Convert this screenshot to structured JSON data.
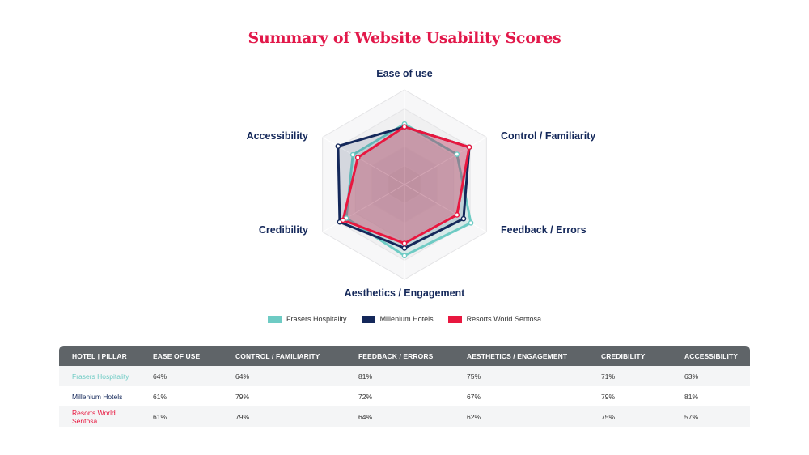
{
  "colors": {
    "title": "#e2184a",
    "axis_label": "#14285a",
    "frasers": "#6ecbc4",
    "millenium": "#14285a",
    "resorts": "#e8173f"
  },
  "chart_data": {
    "type": "radar",
    "title": "Summary of Website Usability Scores",
    "axes": [
      "Ease of use",
      "Control / Familiarity",
      "Feedback / Errors",
      "Aesthetics / Engagement",
      "Credibility",
      "Accessibility"
    ],
    "range": [
      0,
      100
    ],
    "series": [
      {
        "name": "Frasers Hospitality",
        "values": [
          64,
          64,
          81,
          75,
          71,
          63
        ]
      },
      {
        "name": "Millenium Hotels",
        "values": [
          61,
          79,
          72,
          67,
          79,
          81
        ]
      },
      {
        "name": "Resorts World Sentosa",
        "values": [
          61,
          79,
          64,
          62,
          75,
          57
        ]
      }
    ],
    "legend_position": "bottom"
  },
  "table": {
    "headers": [
      "HOTEL | PILLAR",
      "EASE OF USE",
      "CONTROL / FAMILIARITY",
      "FEEDBACK / ERRORS",
      "AESTHETICS / ENGAGEMENT",
      "CREDIBILITY",
      "ACCESSIBILITY"
    ],
    "rows": [
      {
        "hotel": "Frasers Hospitality",
        "cells": [
          "64%",
          "64%",
          "81%",
          "75%",
          "71%",
          "63%"
        ]
      },
      {
        "hotel": "Millenium Hotels",
        "cells": [
          "61%",
          "79%",
          "72%",
          "67%",
          "79%",
          "81%"
        ]
      },
      {
        "hotel": "Resorts World Sentosa",
        "cells": [
          "61%",
          "79%",
          "64%",
          "62%",
          "75%",
          "57%"
        ]
      }
    ]
  }
}
